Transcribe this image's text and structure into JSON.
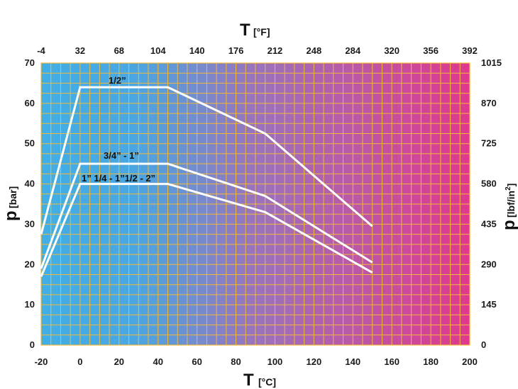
{
  "chart_data": {
    "type": "line",
    "x_axis": {
      "symbol": "T",
      "unit": "[°C]",
      "range": [
        -20,
        200
      ],
      "ticks": [
        -20,
        0,
        20,
        40,
        60,
        80,
        100,
        120,
        140,
        160,
        180,
        200
      ]
    },
    "x_axis_top": {
      "symbol": "T",
      "unit": "[°F]",
      "ticks": [
        -4,
        32,
        68,
        104,
        140,
        176,
        212,
        248,
        284,
        320,
        356,
        392
      ]
    },
    "y_axis": {
      "symbol": "p",
      "unit": "[bar]",
      "range": [
        0,
        70
      ],
      "ticks": [
        0,
        10,
        20,
        30,
        40,
        50,
        60,
        70
      ]
    },
    "y_axis_right": {
      "symbol": "p",
      "unit": "[lbf/in",
      "unit_sup": "2",
      "unit_end": "]",
      "ticks": [
        0,
        145,
        290,
        435,
        580,
        725,
        870,
        1015
      ]
    },
    "grid": true,
    "series": [
      {
        "name": "1/2”",
        "points": [
          [
            -20,
            27.5
          ],
          [
            0,
            64
          ],
          [
            45,
            64
          ],
          [
            95,
            52.5
          ],
          [
            150,
            29.5
          ]
        ]
      },
      {
        "name": "3/4” - 1”",
        "points": [
          [
            -20,
            19
          ],
          [
            0,
            45
          ],
          [
            45,
            45
          ],
          [
            95,
            37
          ],
          [
            150,
            20.5
          ]
        ]
      },
      {
        "name": "1” 1/4 - 1”1/2 - 2”",
        "points": [
          [
            -20,
            17
          ],
          [
            0,
            40
          ],
          [
            45,
            40
          ],
          [
            95,
            33
          ],
          [
            150,
            18
          ]
        ]
      }
    ],
    "colors": {
      "gradient_start": "#42aee6",
      "gradient_mid": "#9a73bd",
      "gradient_end": "#e0388d",
      "grid": "#f0b93a",
      "line": "#ffffff"
    }
  }
}
